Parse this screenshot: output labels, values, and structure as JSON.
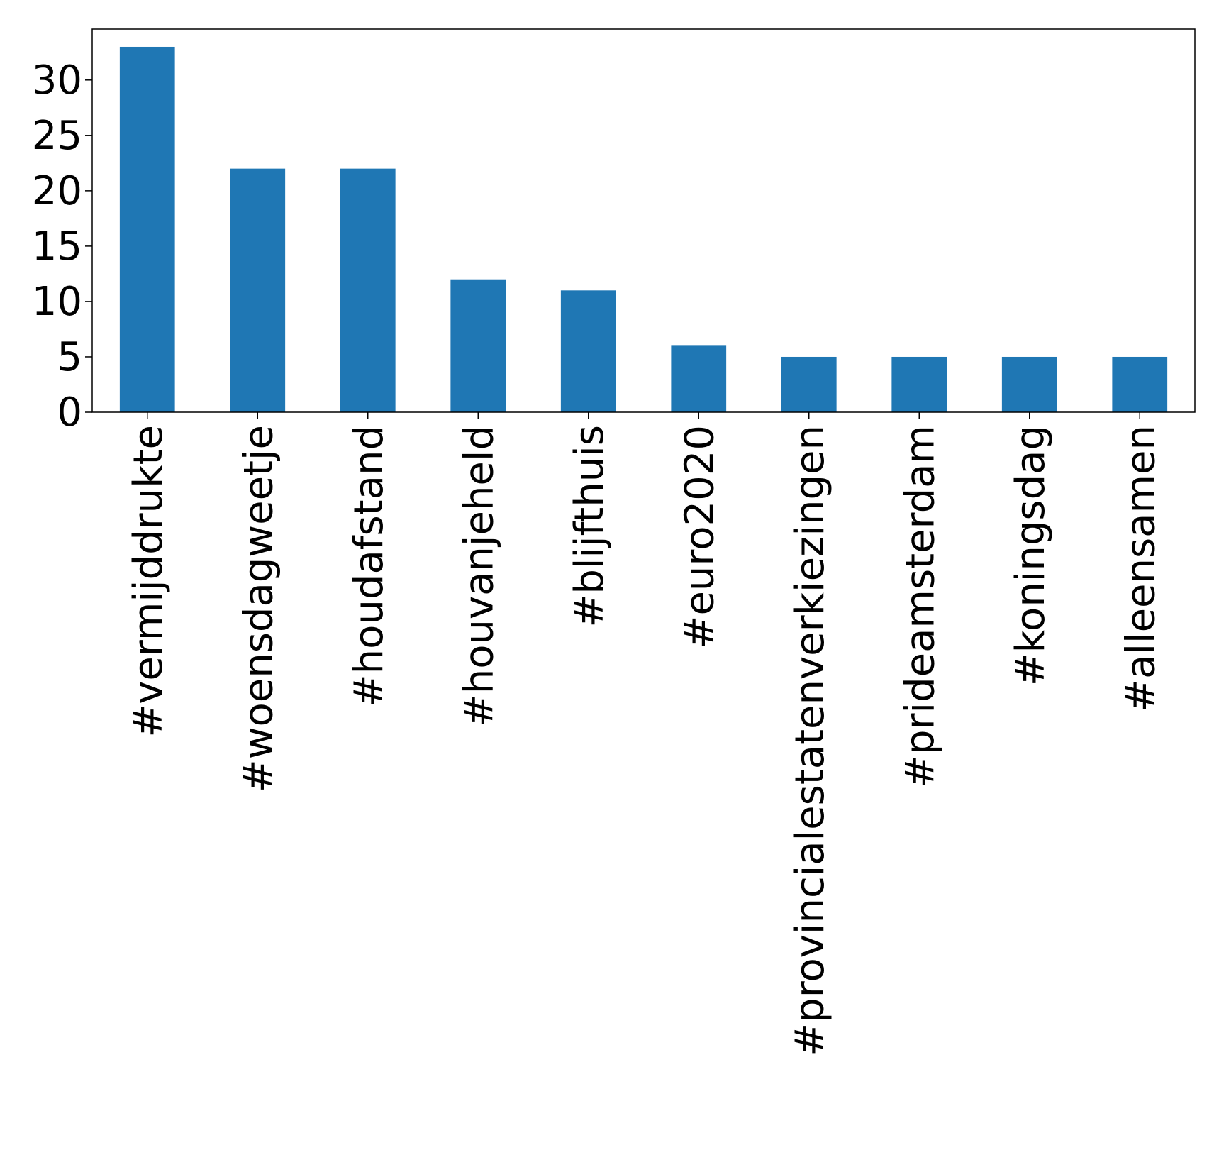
{
  "chart_data": {
    "type": "bar",
    "title": "",
    "xlabel": "",
    "ylabel": "",
    "categories": [
      "#vermijddrukte",
      "#woensdagweetje",
      "#houdafstand",
      "#houvanjeheld",
      "#blijfthuis",
      "#euro2020",
      "#provincialestatenverkiezingen",
      "#prideamsterdam",
      "#koningsdag",
      "#alleensamen"
    ],
    "values": [
      33,
      22,
      22,
      12,
      11,
      6,
      5,
      5,
      5,
      5
    ],
    "ylim": [
      0,
      34.6
    ],
    "yticks": [
      0,
      5,
      10,
      15,
      20,
      25,
      30
    ],
    "ytick_labels": [
      "0",
      "5",
      "10",
      "15",
      "20",
      "25",
      "30"
    ],
    "bar_color": "#1f77b4",
    "grid": false,
    "legend": "none"
  }
}
